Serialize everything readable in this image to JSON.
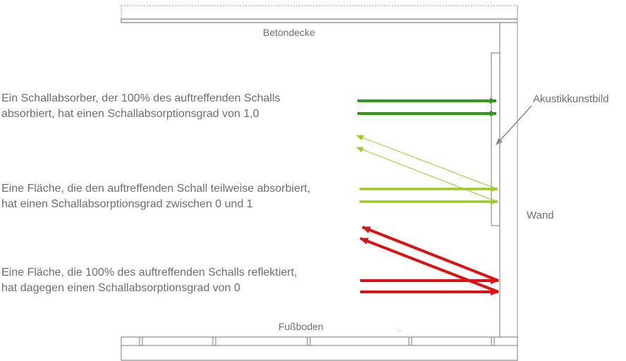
{
  "labels": {
    "ceiling": "Betondecke",
    "floor": "Fußboden",
    "wall": "Wand",
    "panel": "Akustikkunstbild"
  },
  "cases": [
    {
      "line1": "Ein Schallabsorber, der 100% des auftreffenden Schalls",
      "line2": "absorbiert, hat einen Schallabsorptionsgrad von 1,0",
      "color": "#2e9b17"
    },
    {
      "line1": "Eine Fläche, die den auftreffenden Schall teilweise absorbiert,",
      "line2": "hat einen Schallabsorptionsgrad zwischen 0 und 1",
      "color": "#9acd1e"
    },
    {
      "line1": "Eine Fläche, die 100% des auftreffenden Schalls reflektiert,",
      "line2": "hat dagegen einen Schallabsorptionsgrad von  0",
      "color": "#dd1111"
    }
  ]
}
